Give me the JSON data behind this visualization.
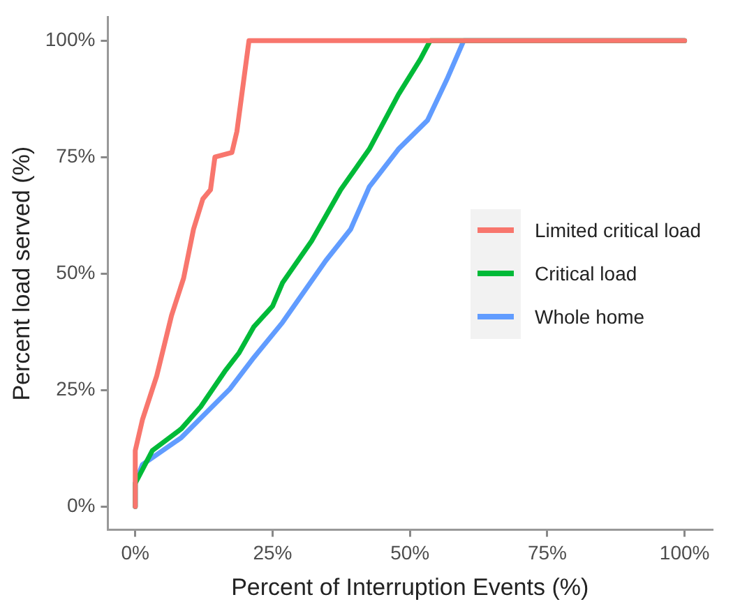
{
  "chart_data": {
    "type": "line",
    "xlabel": "Percent of Interruption Events (%)",
    "ylabel": "Percent load served (%)",
    "xlim": [
      -5,
      105
    ],
    "ylim": [
      -5,
      105
    ],
    "xticks": [
      {
        "value": 0,
        "label": "0%"
      },
      {
        "value": 25,
        "label": "25%"
      },
      {
        "value": 50,
        "label": "50%"
      },
      {
        "value": 75,
        "label": "75%"
      },
      {
        "value": 100,
        "label": "100%"
      }
    ],
    "yticks": [
      {
        "value": 0,
        "label": "0%"
      },
      {
        "value": 25,
        "label": "25%"
      },
      {
        "value": 50,
        "label": "50%"
      },
      {
        "value": 75,
        "label": "75%"
      },
      {
        "value": 100,
        "label": "100%"
      }
    ],
    "grid": false,
    "legend": "right",
    "marker": "none",
    "line_style": "solid",
    "series": [
      {
        "name": "Limited critical load",
        "color": "#f8766d",
        "x": [
          0,
          0,
          1.3,
          3.9,
          6.6,
          8.8,
          10.6,
          12.3,
          13.7,
          14.5,
          17.6,
          18.5,
          20.7,
          100
        ],
        "values": [
          0,
          12,
          18.6,
          28,
          41,
          49,
          59.5,
          66,
          68,
          75,
          76,
          80.5,
          100,
          100
        ]
      },
      {
        "name": "Critical load",
        "color": "#00ba38",
        "x": [
          0,
          0,
          3.1,
          8.4,
          11.9,
          16.3,
          18.9,
          21.6,
          25,
          26.8,
          32.1,
          37.4,
          42.6,
          47.9,
          51.9,
          53.7,
          100
        ],
        "values": [
          0,
          5,
          12,
          16.7,
          21.4,
          29,
          33,
          38.6,
          43,
          48,
          57,
          68,
          76.7,
          88.4,
          96,
          100,
          100
        ]
      },
      {
        "name": "Whole home",
        "color": "#619cff",
        "x": [
          0,
          0,
          1.3,
          8.4,
          17.2,
          21.6,
          26.8,
          34.7,
          39.2,
          42.6,
          47.9,
          53.2,
          56.7,
          59.8,
          100
        ],
        "values": [
          0,
          5,
          9,
          14.8,
          25.2,
          32,
          39.5,
          52.8,
          59.5,
          68.6,
          76.7,
          82.9,
          91.6,
          100,
          100
        ]
      }
    ]
  }
}
